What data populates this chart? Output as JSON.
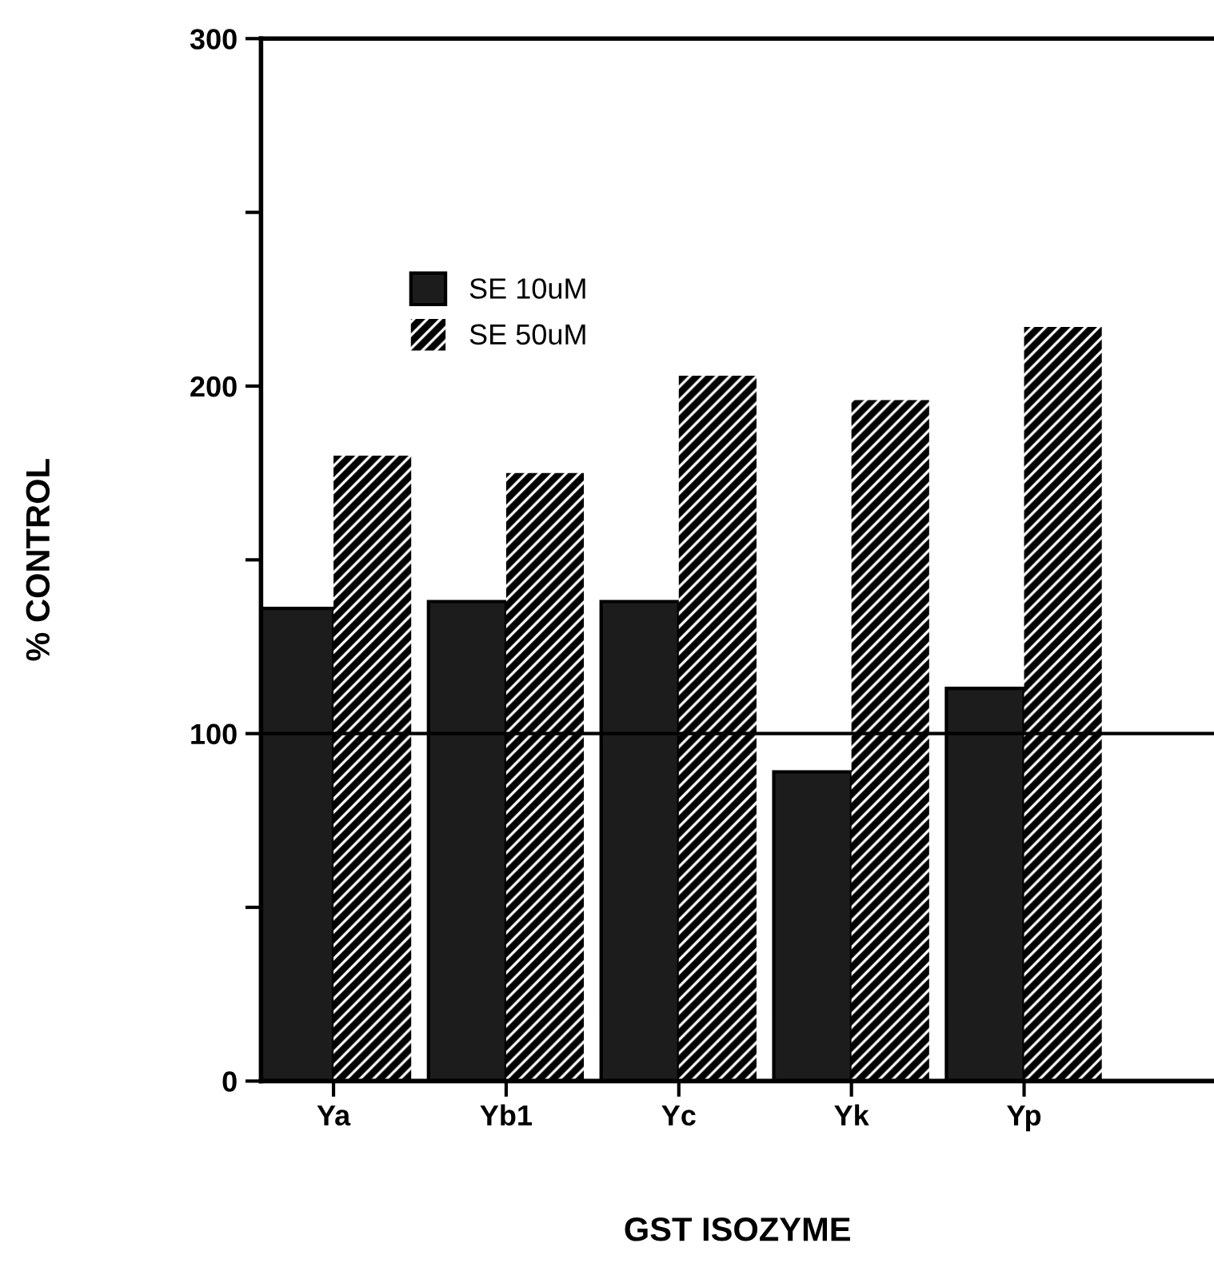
{
  "chart_data": {
    "type": "bar",
    "xlabel": "GST ISOZYME",
    "ylabel": "% CONTROL",
    "categories": [
      "Ya",
      "Yb1",
      "Yc",
      "Yk",
      "Yp"
    ],
    "series": [
      {
        "name": "SE 10uM",
        "color": "#1c1c1c",
        "values": [
          136,
          138,
          138,
          89,
          113
        ]
      },
      {
        "name": "SE 50uM",
        "color": "#000000",
        "values": [
          180,
          175,
          203,
          196,
          217
        ]
      }
    ],
    "ylim": [
      0,
      300
    ],
    "yticks": [
      0,
      {
        "value": 50,
        "label": null
      },
      100,
      {
        "value": 150,
        "label": null
      },
      200,
      {
        "value": 250,
        "label": null
      },
      300
    ],
    "ref_lines": [
      {
        "axis": "y",
        "value": 100,
        "label": null,
        "color": "#000000"
      }
    ],
    "legend": "top left",
    "grid": false
  }
}
